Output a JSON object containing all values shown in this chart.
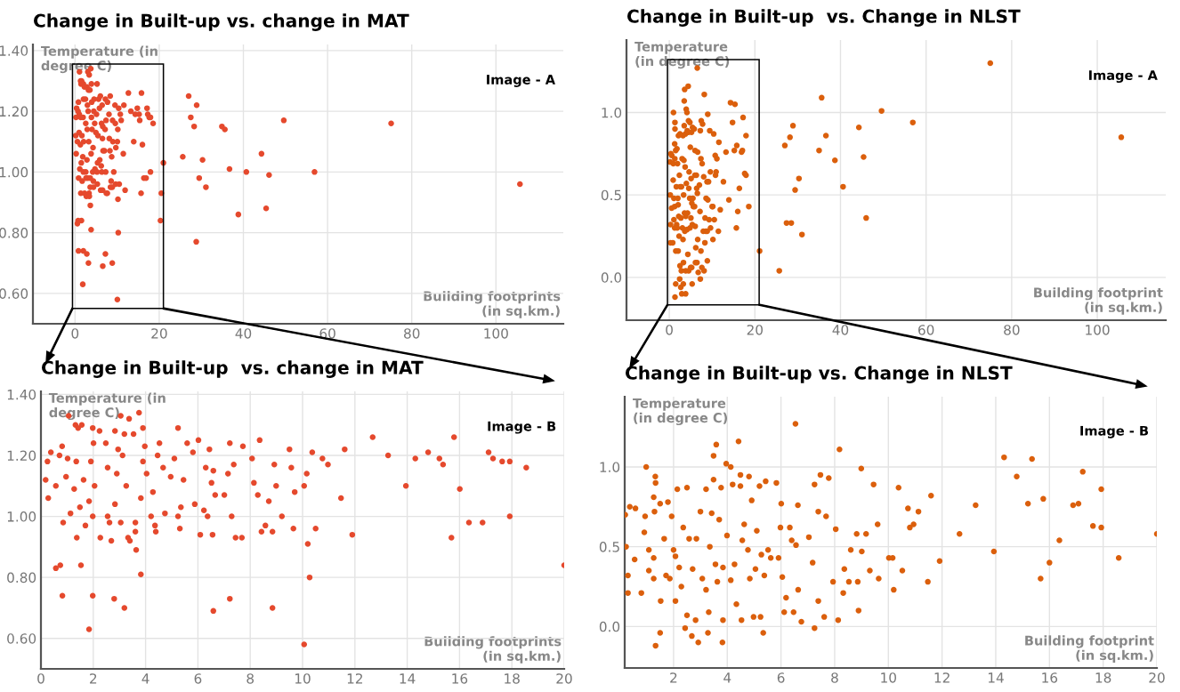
{
  "chart_data": [
    {
      "type": "scatter",
      "title": "Change in Built-up vs. change in MAT",
      "xlabel": "Building footprints\n(in sq.km.)",
      "ylabel": "Temperature (in\ndegree C)",
      "annotations": [
        "Image - A"
      ],
      "color": "#e5492d",
      "marker": "circle",
      "grid": true,
      "xlim": [
        -10,
        116
      ],
      "ylim": [
        0.5,
        1.42
      ],
      "xticks": [
        0,
        20,
        40,
        60,
        80,
        100
      ],
      "yticks": [
        {
          "value": 0.6,
          "label": "0.60"
        },
        {
          "value": 0.8,
          "label": "0.80"
        },
        {
          "value": 1.0,
          "label": "1.00"
        },
        {
          "value": 1.2,
          "label": "1.20"
        },
        {
          "value": 1.4,
          "label": "1.40"
        }
      ],
      "x": [
        1.06,
        0.18,
        0.25,
        0.38,
        0.28,
        0.57,
        0.71,
        0.81,
        0.85,
        1.02,
        0.96,
        1.13,
        1.32,
        1.42,
        1.56,
        1.35,
        1.27,
        1.37,
        1.49,
        1.63,
        1.7,
        1.84,
        1.98,
        2.01,
        1.91,
        2.05,
        1.98,
        2.27,
        2.24,
        2.48,
        2.55,
        2.55,
        2.62,
        2.69,
        2.83,
        2.95,
        2.9,
        2.83,
        3.05,
        3.19,
        3.12,
        3.26,
        3.33,
        3.4,
        3.05,
        3.37,
        3.54,
        3.64,
        3.75,
        3.61,
        3.61,
        3.9,
        3.97,
        4.04,
        3.9,
        3.82,
        4.21,
        4.36,
        4.39,
        4.53,
        4.46,
        4.67,
        4.28,
        4.74,
        4.96,
        5.1,
        5.24,
        5.24,
        5.31,
        5.35,
        5.45,
        5.59,
        5.81,
        6.02,
        5.88,
        6.09,
        6.23,
        6.3,
        6.44,
        6.52,
        6.59,
        6.56,
        6.66,
        6.37,
        6.59,
        7.01,
        7.15,
        7.22,
        7.29,
        7.37,
        7.44,
        7.68,
        7.22,
        7.72,
        8.07,
        8.14,
        8.29,
        8.36,
        8.43,
        8.58,
        8.71,
        8.85,
        8.85,
        8.92,
        8.99,
        9.21,
        9.5,
        9.57,
        9.65,
        9.7,
        10.06,
        10.16,
        10.2,
        10.27,
        10.06,
        10.37,
        10.5,
        10.76,
        10.97,
        11.47,
        11.61,
        11.9,
        12.68,
        13.27,
        13.95,
        14.31,
        14.8,
        15.23,
        15.37,
        15.69,
        15.79,
        16.01,
        16.36,
        16.88,
        17.11,
        17.28,
        17.63,
        17.92,
        17.92,
        18.55,
        0.57,
        0.74,
        1.53,
        0.82,
        1.98,
        1.84,
        2.8,
        3.19,
        3.82,
        27.0,
        28.9,
        27.5,
        28.3,
        34.9,
        35.6,
        49.6,
        75.1,
        25.6,
        30.3,
        21.0,
        36.7,
        40.7,
        44.3,
        46.1,
        56.9,
        105.7,
        29.5,
        31.1,
        38.8,
        45.4,
        28.8,
        20.5,
        20.3
      ],
      "values": [
        1.33,
        1.12,
        1.18,
        1.21,
        1.06,
        1.1,
        1.2,
        1.23,
        0.98,
        1.19,
        1.13,
        1.01,
        1.3,
        1.29,
        1.3,
        1.18,
        1.09,
        0.93,
        1.03,
        1.12,
        0.97,
        1.05,
        1.29,
        1.24,
        1.18,
        1.1,
        1.0,
        0.93,
        1.28,
        1.24,
        1.16,
        1.0,
        0.98,
        0.92,
        1.28,
        1.22,
        1.14,
        1.04,
        1.33,
        1.27,
        1.2,
        1.1,
        0.93,
        0.92,
        0.98,
        1.32,
        1.27,
        0.89,
        1.34,
        0.98,
        0.95,
        1.29,
        1.23,
        1.14,
        1.18,
        1.06,
        1.0,
        0.97,
        0.95,
        1.24,
        1.2,
        1.16,
        1.08,
        1.01,
        1.13,
        1.19,
        1.29,
        1.0,
        0.96,
        1.03,
        1.12,
        1.24,
        1.21,
        1.25,
        1.04,
        0.94,
        1.02,
        1.16,
        1.22,
        1.11,
        1.15,
        0.94,
        1.07,
        1.0,
        0.69,
        1.07,
        1.14,
        1.24,
        1.0,
        1.17,
        0.93,
        0.93,
        0.73,
        1.23,
        1.19,
        1.11,
        1.07,
        1.25,
        0.95,
        0.97,
        1.05,
        0.95,
        0.7,
        1.17,
        1.1,
        1.0,
        1.22,
        1.16,
        0.96,
        1.08,
        1.1,
        1.14,
        0.91,
        0.8,
        0.58,
        1.21,
        0.96,
        1.19,
        1.17,
        1.06,
        1.22,
        0.94,
        1.26,
        1.2,
        1.1,
        1.19,
        1.21,
        1.19,
        1.17,
        0.93,
        1.26,
        1.09,
        0.98,
        0.98,
        1.21,
        1.19,
        1.18,
        1.18,
        1.0,
        1.16,
        0.83,
        0.84,
        0.84,
        0.74,
        0.74,
        0.63,
        0.73,
        0.7,
        0.81,
        1.25,
        1.22,
        1.18,
        1.15,
        1.15,
        1.14,
        1.17,
        1.16,
        1.05,
        1.04,
        1.03,
        1.01,
        1.0,
        1.06,
        0.99,
        1.0,
        0.96,
        0.98,
        0.95,
        0.86,
        0.88,
        0.77,
        0.93,
        0.84
      ]
    },
    {
      "type": "scatter",
      "title": "Change in Built-up  vs. Change in NLST",
      "xlabel": "Building footprint\n(in sq.km.)",
      "ylabel": "Temperature\n(in degree C)",
      "annotations": [
        "Image - A"
      ],
      "color": "#db5f0c",
      "marker": "circle",
      "grid": true,
      "xlim": [
        -10,
        116
      ],
      "ylim": [
        -0.26,
        1.44
      ],
      "xticks": [
        0,
        20,
        40,
        60,
        80,
        100
      ],
      "yticks": [
        {
          "value": 0,
          "label": "0.0"
        },
        {
          "value": 0.5,
          "label": "0.5"
        },
        {
          "value": 1.0,
          "label": "1.0"
        }
      ],
      "x": [
        0.2,
        0.23,
        0.3,
        0.3,
        0.37,
        0.58,
        0.55,
        0.8,
        0.98,
        0.94,
        0.91,
        1.08,
        1.08,
        1.26,
        1.32,
        1.33,
        1.29,
        1.26,
        1.26,
        1.33,
        1.5,
        1.52,
        1.5,
        1.65,
        1.72,
        1.79,
        1.86,
        1.93,
        2.0,
        2.07,
        2.07,
        2.14,
        2.21,
        2.29,
        2.36,
        2.43,
        2.5,
        2.5,
        2.58,
        2.68,
        2.71,
        2.82,
        2.85,
        2.92,
        3.0,
        3.07,
        3.21,
        3.21,
        3.28,
        3.31,
        3.35,
        3.42,
        3.49,
        3.56,
        3.59,
        3.49,
        3.63,
        3.7,
        3.77,
        3.82,
        3.84,
        3.84,
        3.96,
        3.99,
        4.13,
        4.13,
        4.2,
        4.27,
        4.34,
        4.42,
        4.49,
        4.49,
        4.53,
        4.56,
        4.63,
        4.77,
        4.81,
        4.84,
        4.91,
        4.98,
        5.05,
        5.1,
        5.2,
        5.24,
        5.27,
        5.34,
        5.38,
        5.43,
        5.52,
        5.62,
        5.83,
        5.91,
        5.98,
        6.01,
        6.05,
        6.12,
        6.19,
        6.33,
        6.4,
        6.47,
        6.54,
        6.56,
        6.63,
        6.64,
        6.76,
        7.04,
        7.18,
        7.25,
        7.25,
        7.39,
        7.39,
        7.47,
        7.61,
        7.68,
        7.78,
        7.94,
        8.04,
        8.13,
        8.18,
        8.32,
        8.36,
        8.53,
        8.6,
        8.82,
        8.86,
        8.89,
        8.99,
        9.01,
        9.17,
        9.31,
        9.45,
        9.6,
        9.64,
        10.02,
        10.16,
        10.2,
        10.38,
        10.52,
        10.73,
        10.8,
        10.94,
        11.12,
        11.47,
        11.59,
        11.91,
        12.65,
        13.25,
        13.93,
        14.31,
        14.78,
        15.2,
        15.35,
        15.67,
        15.77,
        16.0,
        16.37,
        16.88,
        17.08,
        17.24,
        17.62,
        17.93,
        17.93,
        18.58,
        21.1,
        25.7,
        27.4,
        28.5,
        31.0,
        29.4,
        30.3,
        27.0,
        28.2,
        28.9,
        35.0,
        36.6,
        35.6,
        38.7,
        40.6,
        44.3,
        45.4,
        46.0,
        49.6,
        56.9,
        75.0,
        105.6
      ],
      "values": [
        0.7,
        0.5,
        0.32,
        0.21,
        0.75,
        0.74,
        0.42,
        0.21,
        1.0,
        0.69,
        0.59,
        0.48,
        0.35,
        0.81,
        0.94,
        0.9,
        0.72,
        0.43,
        0.3,
        -0.12,
        -0.04,
        0.16,
        0.77,
        0.55,
        0.32,
        0.78,
        0.3,
        0.69,
        0.48,
        0.16,
        0.44,
        0.86,
        0.37,
        0.25,
        0.62,
        -0.01,
        0.87,
        0.07,
        0.55,
        -0.06,
        0.36,
        0.04,
        0.55,
        -0.1,
        0.72,
        0.3,
        0.86,
        0.23,
        -0.04,
        0.09,
        0.5,
        0.71,
        0.92,
        0.39,
        1.14,
        1.07,
        0.28,
        0.67,
        0.87,
        -0.1,
        0.37,
        0.04,
        1.02,
        0.57,
        1.0,
        0.29,
        0.89,
        0.39,
        0.14,
        1.16,
        0.95,
        0.88,
        0.04,
        0.54,
        0.64,
        0.48,
        0.94,
        0.3,
        0.79,
        0.06,
        0.36,
        0.6,
        0.88,
        0.06,
        0.45,
        -0.04,
        0.32,
        0.91,
        0.48,
        0.43,
        0.9,
        0.43,
        0.62,
        0.77,
        0.31,
        0.09,
        0.18,
        0.62,
        0.54,
        0.09,
        1.27,
        0.51,
        0.76,
        0.23,
        0.03,
        0.56,
        0.4,
        0.89,
        -0.01,
        0.16,
        0.72,
        0.95,
        0.06,
        0.69,
        0.93,
        0.28,
        0.61,
        0.04,
        1.11,
        0.21,
        0.36,
        0.28,
        0.48,
        0.58,
        0.28,
        0.1,
        0.99,
        0.47,
        0.58,
        0.35,
        0.89,
        0.64,
        0.3,
        0.43,
        0.43,
        0.23,
        0.87,
        0.35,
        0.74,
        0.62,
        0.64,
        0.72,
        0.28,
        0.82,
        0.41,
        0.58,
        0.76,
        0.47,
        1.06,
        0.94,
        0.77,
        1.05,
        0.3,
        0.8,
        0.4,
        0.54,
        0.76,
        0.77,
        0.97,
        0.63,
        0.86,
        0.62,
        0.43,
        0.16,
        0.04,
        0.33,
        0.33,
        0.26,
        0.53,
        0.6,
        0.8,
        0.85,
        0.92,
        0.77,
        0.86,
        1.09,
        0.71,
        0.55,
        0.91,
        0.73,
        0.36,
        1.01,
        0.94,
        1.3,
        0.85
      ]
    },
    {
      "type": "scatter",
      "title": "Change in Built-up  vs. change in MAT",
      "xlabel": "Building footprints\n(in sq.km.)",
      "ylabel": "Temperature (in\ndegree C)",
      "annotations": [
        "Image - B"
      ],
      "color": "#e5492d",
      "marker": "circle",
      "grid": true,
      "xlim": [
        0,
        20
      ],
      "ylim": [
        0.5,
        1.41
      ],
      "xticks": [
        0,
        2,
        4,
        6,
        8,
        10,
        12,
        14,
        16,
        18,
        20
      ],
      "yticks": [
        {
          "value": 0.6,
          "label": "0.60"
        },
        {
          "value": 0.8,
          "label": "0.80"
        },
        {
          "value": 1.0,
          "label": "1.00"
        },
        {
          "value": 1.2,
          "label": "1.20"
        },
        {
          "value": 1.4,
          "label": "1.40"
        }
      ],
      "x": [
        1.06,
        0.18,
        0.25,
        0.38,
        0.28,
        0.57,
        0.71,
        0.81,
        0.85,
        1.02,
        0.96,
        1.13,
        1.32,
        1.42,
        1.56,
        1.35,
        1.27,
        1.37,
        1.49,
        1.63,
        1.7,
        1.84,
        1.98,
        2.01,
        1.91,
        2.05,
        1.98,
        2.27,
        2.24,
        2.48,
        2.55,
        2.55,
        2.62,
        2.69,
        2.83,
        2.95,
        2.9,
        2.83,
        3.05,
        3.19,
        3.12,
        3.26,
        3.33,
        3.4,
        3.05,
        3.37,
        3.54,
        3.64,
        3.75,
        3.61,
        3.61,
        3.9,
        3.97,
        4.04,
        3.9,
        3.82,
        4.21,
        4.36,
        4.39,
        4.53,
        4.46,
        4.67,
        4.28,
        4.74,
        4.96,
        5.1,
        5.24,
        5.24,
        5.31,
        5.35,
        5.45,
        5.59,
        5.81,
        6.02,
        5.88,
        6.09,
        6.23,
        6.3,
        6.44,
        6.52,
        6.59,
        6.56,
        6.66,
        6.37,
        6.59,
        7.01,
        7.15,
        7.22,
        7.29,
        7.37,
        7.44,
        7.68,
        7.22,
        7.72,
        8.07,
        8.14,
        8.29,
        8.36,
        8.43,
        8.58,
        8.71,
        8.85,
        8.85,
        8.92,
        8.99,
        9.21,
        9.5,
        9.57,
        9.65,
        9.7,
        10.06,
        10.16,
        10.2,
        10.27,
        10.06,
        10.37,
        10.5,
        10.76,
        10.97,
        11.47,
        11.61,
        11.9,
        12.68,
        13.27,
        13.95,
        14.31,
        14.8,
        15.23,
        15.37,
        15.69,
        15.79,
        16.01,
        16.36,
        16.88,
        17.11,
        17.28,
        17.63,
        17.92,
        17.92,
        18.55,
        20.0,
        0.57,
        0.74,
        1.53,
        0.82,
        1.98,
        1.84,
        2.8,
        3.19,
        3.82
      ],
      "values": [
        1.33,
        1.12,
        1.18,
        1.21,
        1.06,
        1.1,
        1.2,
        1.23,
        0.98,
        1.19,
        1.13,
        1.01,
        1.3,
        1.29,
        1.3,
        1.18,
        1.09,
        0.93,
        1.03,
        1.12,
        0.97,
        1.05,
        1.29,
        1.24,
        1.18,
        1.1,
        1.0,
        0.93,
        1.28,
        1.24,
        1.16,
        1.0,
        0.98,
        0.92,
        1.28,
        1.22,
        1.14,
        1.04,
        1.33,
        1.27,
        1.2,
        1.1,
        0.93,
        0.92,
        0.98,
        1.32,
        1.27,
        0.89,
        1.34,
        0.98,
        0.95,
        1.29,
        1.23,
        1.14,
        1.18,
        1.06,
        1.0,
        0.97,
        0.95,
        1.24,
        1.2,
        1.16,
        1.08,
        1.01,
        1.13,
        1.19,
        1.29,
        1.0,
        0.96,
        1.03,
        1.12,
        1.24,
        1.21,
        1.25,
        1.04,
        0.94,
        1.02,
        1.16,
        1.22,
        1.11,
        1.15,
        0.94,
        1.07,
        1.0,
        0.69,
        1.07,
        1.14,
        1.24,
        1.0,
        1.17,
        0.93,
        0.93,
        0.73,
        1.23,
        1.19,
        1.11,
        1.07,
        1.25,
        0.95,
        0.97,
        1.05,
        0.95,
        0.7,
        1.17,
        1.1,
        1.0,
        1.22,
        1.16,
        0.96,
        1.08,
        1.1,
        1.14,
        0.91,
        0.8,
        0.58,
        1.21,
        0.96,
        1.19,
        1.17,
        1.06,
        1.22,
        0.94,
        1.26,
        1.2,
        1.1,
        1.19,
        1.21,
        1.19,
        1.17,
        0.93,
        1.26,
        1.09,
        0.98,
        0.98,
        1.21,
        1.19,
        1.18,
        1.18,
        1.0,
        1.16,
        0.84,
        0.83,
        0.84,
        0.84,
        0.74,
        0.74,
        0.63,
        0.73,
        0.7,
        0.81
      ]
    },
    {
      "type": "scatter",
      "title": "Change in Built-up vs. Change in NLST",
      "xlabel": "Building footprint\n(in sq.km.)",
      "ylabel": "Temperature\n(in degree C)",
      "annotations": [
        "Image - B"
      ],
      "color": "#db5f0c",
      "marker": "circle",
      "grid": true,
      "xlim": [
        0.18,
        20
      ],
      "ylim": [
        -0.26,
        1.44
      ],
      "xticks": [
        2,
        4,
        6,
        8,
        10,
        12,
        14,
        16,
        18,
        20
      ],
      "yticks": [
        {
          "value": 0,
          "label": "0.0"
        },
        {
          "value": 0.5,
          "label": "0.5"
        },
        {
          "value": 1.0,
          "label": "1.0"
        }
      ],
      "x": [
        0.2,
        0.23,
        0.3,
        0.3,
        0.37,
        0.58,
        0.55,
        0.8,
        0.98,
        0.94,
        0.91,
        1.08,
        1.08,
        1.26,
        1.32,
        1.33,
        1.29,
        1.26,
        1.26,
        1.33,
        1.5,
        1.52,
        1.5,
        1.65,
        1.72,
        1.79,
        1.86,
        1.93,
        2.0,
        2.07,
        2.07,
        2.14,
        2.21,
        2.29,
        2.36,
        2.43,
        2.5,
        2.5,
        2.58,
        2.68,
        2.71,
        2.82,
        2.85,
        2.92,
        3.0,
        3.07,
        3.21,
        3.21,
        3.28,
        3.31,
        3.35,
        3.42,
        3.49,
        3.56,
        3.59,
        3.49,
        3.63,
        3.7,
        3.77,
        3.82,
        3.84,
        3.84,
        3.96,
        3.99,
        4.13,
        4.13,
        4.2,
        4.27,
        4.34,
        4.42,
        4.49,
        4.49,
        4.53,
        4.56,
        4.63,
        4.77,
        4.81,
        4.84,
        4.91,
        4.98,
        5.05,
        5.1,
        5.2,
        5.24,
        5.27,
        5.34,
        5.38,
        5.43,
        5.52,
        5.62,
        5.83,
        5.91,
        5.98,
        6.01,
        6.05,
        6.12,
        6.19,
        6.33,
        6.4,
        6.47,
        6.54,
        6.56,
        6.63,
        6.64,
        6.76,
        7.04,
        7.18,
        7.25,
        7.25,
        7.39,
        7.39,
        7.47,
        7.61,
        7.68,
        7.78,
        7.94,
        8.04,
        8.13,
        8.18,
        8.32,
        8.36,
        8.53,
        8.6,
        8.82,
        8.86,
        8.89,
        8.99,
        9.01,
        9.17,
        9.31,
        9.45,
        9.6,
        9.64,
        10.02,
        10.16,
        10.2,
        10.38,
        10.52,
        10.73,
        10.8,
        10.94,
        11.12,
        11.47,
        11.59,
        11.91,
        12.65,
        13.25,
        13.93,
        14.31,
        14.78,
        15.2,
        15.35,
        15.67,
        15.77,
        16.0,
        16.37,
        16.88,
        17.08,
        17.24,
        17.62,
        17.93,
        17.93,
        18.58,
        20.0
      ],
      "values": [
        0.7,
        0.5,
        0.32,
        0.21,
        0.75,
        0.74,
        0.42,
        0.21,
        1.0,
        0.69,
        0.59,
        0.48,
        0.35,
        0.81,
        0.94,
        0.9,
        0.72,
        0.43,
        0.3,
        -0.12,
        -0.04,
        0.16,
        0.77,
        0.55,
        0.32,
        0.78,
        0.3,
        0.69,
        0.48,
        0.16,
        0.44,
        0.86,
        0.37,
        0.25,
        0.62,
        -0.01,
        0.87,
        0.07,
        0.55,
        -0.06,
        0.36,
        0.04,
        0.55,
        -0.1,
        0.72,
        0.3,
        0.86,
        0.23,
        -0.04,
        0.09,
        0.5,
        0.71,
        0.92,
        0.39,
        1.14,
        1.07,
        0.28,
        0.67,
        0.87,
        -0.1,
        0.37,
        0.04,
        1.02,
        0.57,
        1.0,
        0.29,
        0.89,
        0.39,
        0.14,
        1.16,
        0.95,
        0.88,
        0.04,
        0.54,
        0.64,
        0.48,
        0.94,
        0.3,
        0.79,
        0.06,
        0.36,
        0.6,
        0.88,
        0.06,
        0.45,
        -0.04,
        0.32,
        0.91,
        0.48,
        0.43,
        0.9,
        0.43,
        0.62,
        0.77,
        0.31,
        0.09,
        0.18,
        0.62,
        0.54,
        0.09,
        1.27,
        0.51,
        0.76,
        0.23,
        0.03,
        0.56,
        0.4,
        0.89,
        -0.01,
        0.16,
        0.72,
        0.95,
        0.06,
        0.69,
        0.93,
        0.28,
        0.61,
        0.04,
        1.11,
        0.21,
        0.36,
        0.28,
        0.48,
        0.58,
        0.28,
        0.1,
        0.99,
        0.47,
        0.58,
        0.35,
        0.89,
        0.64,
        0.3,
        0.43,
        0.43,
        0.23,
        0.87,
        0.35,
        0.74,
        0.62,
        0.64,
        0.72,
        0.28,
        0.82,
        0.41,
        0.58,
        0.76,
        0.47,
        1.06,
        0.94,
        0.77,
        1.05,
        0.3,
        0.8,
        0.4,
        0.54,
        0.76,
        0.77,
        0.97,
        0.63,
        0.86,
        0.62,
        0.43,
        0.58
      ]
    }
  ]
}
